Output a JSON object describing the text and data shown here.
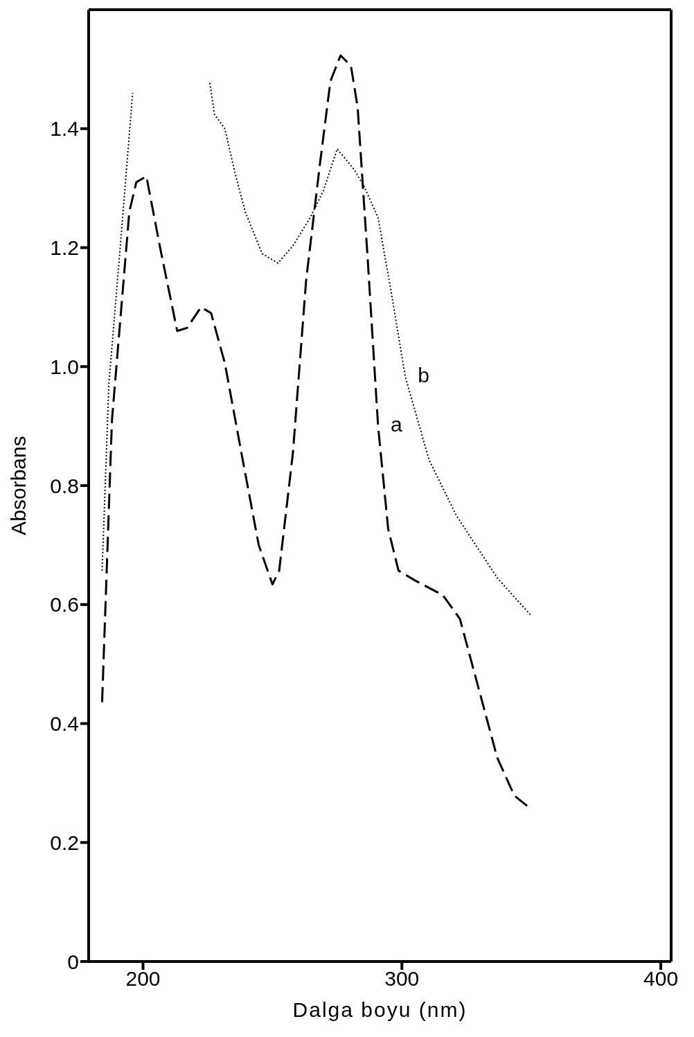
{
  "chart_data": {
    "type": "line",
    "xlabel": "Dalga boyu (nm)",
    "ylabel": "Absorbans",
    "xlim": [
      179,
      404
    ],
    "xticks": [
      200,
      300,
      400
    ],
    "ylim": [
      0,
      1.6
    ],
    "yticks": [
      0,
      0.2,
      0.4,
      0.6,
      0.8,
      {
        "value": 1,
        "label": "1.0"
      },
      1.2,
      1.4
    ],
    "marker": "none",
    "series": [
      {
        "name": "a",
        "color": "#000000",
        "line_style": "dashed",
        "x": [
          184.2,
          188,
          194.7,
          197.4,
          201.3,
          206.6,
          213.2,
          217,
          222.4,
          226.3,
          231.6,
          238,
          244.7,
          250,
          252.6,
          257.9,
          263,
          268.4,
          272.4,
          276.3,
          280.3,
          282.9,
          286.8,
          290.8,
          294.7,
          298.7,
          305.3,
          315.8,
          322.4,
          328.9,
          336.8,
          343.4,
          350
        ],
        "values": [
          0.436,
          0.91,
          1.26,
          1.31,
          1.32,
          1.2,
          1.06,
          1.065,
          1.1,
          1.09,
          1.006,
          0.855,
          0.7,
          0.634,
          0.657,
          0.855,
          1.145,
          1.343,
          1.48,
          1.523,
          1.506,
          1.436,
          1.18,
          0.9,
          0.727,
          0.657,
          0.64,
          0.616,
          0.576,
          0.471,
          0.343,
          0.279,
          0.256
        ]
      },
      {
        "name": "b",
        "color": "#000000",
        "line_style": "dotted",
        "x": [
          184.2,
          186.8,
          190.8,
          193.4,
          196,
          210,
          225.8,
          227.6,
          231.6,
          235.5,
          239.5,
          246,
          252.1,
          257.9,
          264.5,
          269.7,
          275,
          281.6,
          285.5,
          290.8,
          296,
          301.3,
          310.5,
          321,
          336.8,
          350
        ],
        "values": [
          0.657,
          0.97,
          1.18,
          1.32,
          1.46,
          null,
          1.477,
          1.424,
          1.4,
          1.326,
          1.26,
          1.19,
          1.174,
          1.203,
          1.25,
          1.296,
          1.366,
          1.331,
          1.302,
          1.25,
          1.122,
          0.983,
          0.843,
          0.75,
          0.645,
          0.581
        ]
      }
    ]
  }
}
